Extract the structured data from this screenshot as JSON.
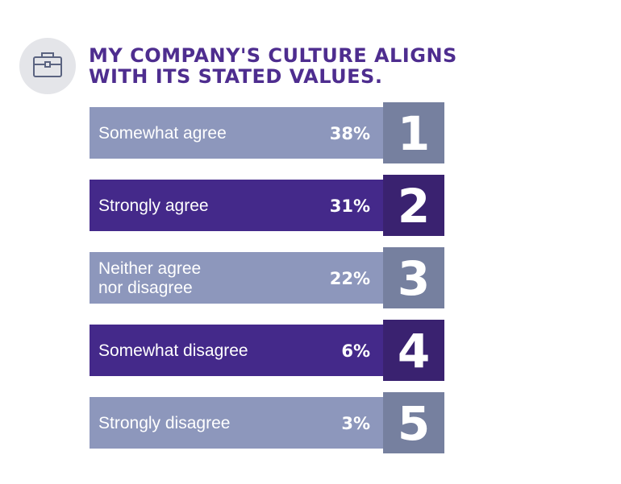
{
  "header": {
    "icon": "briefcase-icon",
    "title_line1": "MY COMPANY'S CULTURE ALIGNS",
    "title_line2": "WITH ITS STATED VALUES."
  },
  "colors": {
    "title": "#4e2d8f",
    "bar_light": "#8d97bc",
    "rank_light": "#76809f",
    "bar_dark": "#44298a",
    "rank_dark": "#3a2270",
    "icon_bg": "#e4e5e9",
    "icon_stroke": "#5a6380"
  },
  "chart_data": {
    "type": "bar",
    "title": "MY COMPANY'S CULTURE ALIGNS WITH ITS STATED VALUES.",
    "unit": "%",
    "categories": [
      [
        "Somewhat agree"
      ],
      [
        "Strongly agree"
      ],
      [
        "Neither agree",
        "nor disagree"
      ],
      [
        "Somewhat disagree"
      ],
      [
        "Strongly disagree"
      ]
    ],
    "values": [
      38,
      31,
      22,
      6,
      3
    ],
    "value_labels": [
      "38%",
      "31%",
      "22%",
      "6%",
      "3%"
    ],
    "ranks": [
      "1",
      "2",
      "3",
      "4",
      "5"
    ],
    "styles": [
      "light",
      "dark",
      "light",
      "dark",
      "light"
    ]
  }
}
